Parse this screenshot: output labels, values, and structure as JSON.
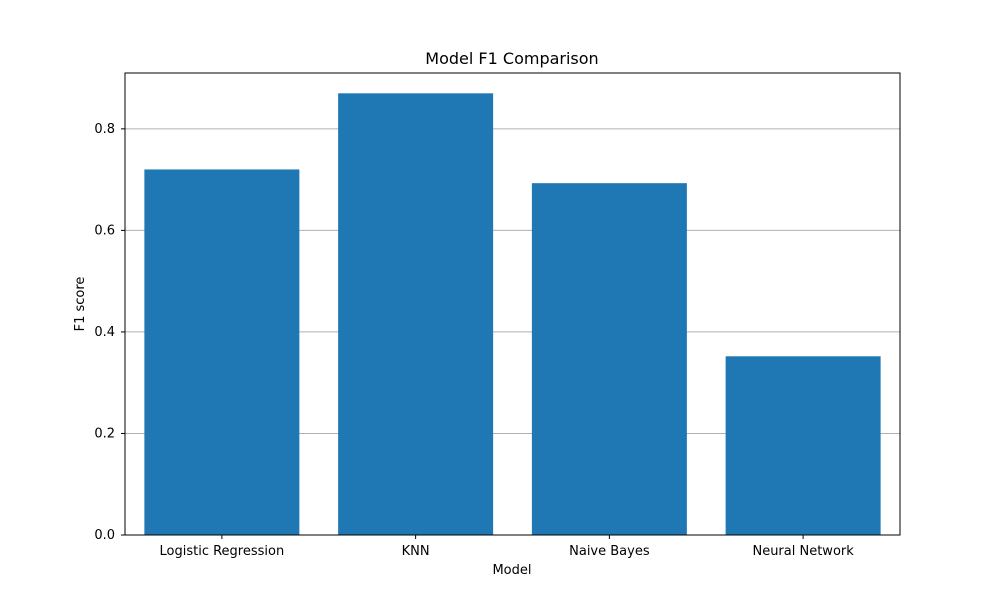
{
  "chart_data": {
    "type": "bar",
    "title": "Model F1 Comparison",
    "xlabel": "Model",
    "ylabel": "F1 score",
    "categories": [
      "Logistic Regression",
      "KNN",
      "Naive Bayes",
      "Neural Network"
    ],
    "values": [
      0.72,
      0.87,
      0.693,
      0.352
    ],
    "ylim": [
      0,
      0.91
    ],
    "yticks": [
      0.0,
      0.2,
      0.4,
      0.6,
      0.8
    ],
    "ytick_labels": [
      "0.0",
      "0.2",
      "0.4",
      "0.6",
      "0.8"
    ],
    "grid": {
      "y": true,
      "x": false
    },
    "bar_color": "#1f77b4",
    "grid_color": "#b0b0b0"
  }
}
